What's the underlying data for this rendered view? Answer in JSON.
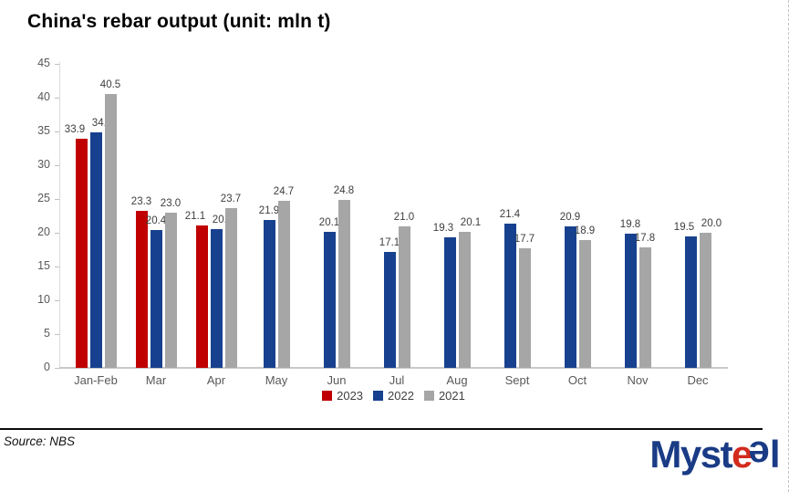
{
  "title": "China's rebar output (unit: mln t)",
  "chart_data": {
    "type": "bar",
    "title": "China's rebar output (unit: mln t)",
    "categories": [
      "Jan-Feb",
      "Mar",
      "Apr",
      "May",
      "Jun",
      "Jul",
      "Aug",
      "Sept",
      "Oct",
      "Nov",
      "Dec"
    ],
    "series": [
      {
        "name": "2023",
        "color": "#C00000",
        "values": [
          33.9,
          23.3,
          21.1,
          null,
          null,
          null,
          null,
          null,
          null,
          null,
          null
        ]
      },
      {
        "name": "2022",
        "color": "#17418F",
        "values": [
          34.8,
          20.4,
          20.6,
          21.9,
          20.1,
          17.1,
          19.3,
          21.4,
          20.9,
          19.8,
          19.5
        ]
      },
      {
        "name": "2021",
        "color": "#A6A6A6",
        "values": [
          40.5,
          23.0,
          23.7,
          24.7,
          24.8,
          21.0,
          20.1,
          17.7,
          18.9,
          17.8,
          20.0
        ]
      }
    ],
    "ylim": [
      0,
      45
    ],
    "ytick_step": 5,
    "grid": false,
    "data_labels": true,
    "legend_position": "bottom",
    "xlabel": "",
    "ylabel": ""
  },
  "footer": {
    "source": "Source: NBS",
    "logo": {
      "part1": "Myst",
      "e_red": "e",
      "e_blue": "e",
      "part2": "l",
      "blue_color": "#1A3B85",
      "red_color": "#D22B1C"
    }
  }
}
